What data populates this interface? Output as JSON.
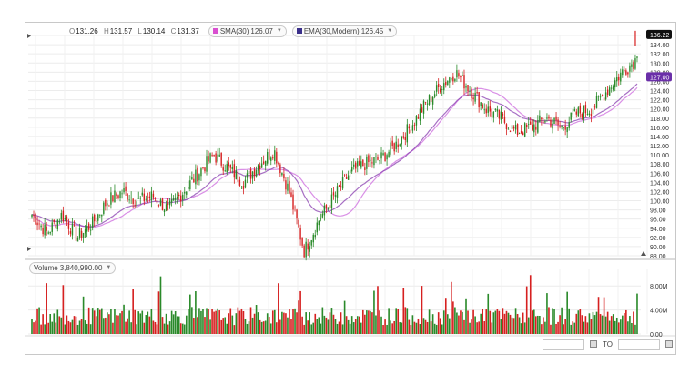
{
  "legend": {
    "open_key": "O",
    "open_val": "131.26",
    "high_key": "H",
    "high_val": "131.57",
    "low_key": "L",
    "low_val": "130.14",
    "close_key": "C",
    "close_val": "131.37",
    "sma_label": "SMA(30)",
    "sma_val": "126.07",
    "sma_color": "#d94fd0",
    "ema_label": "EMA(30,Modern)",
    "ema_val": "126.45",
    "ema_color": "#3a2f8a"
  },
  "volume_legend": {
    "label": "Volume",
    "value": "3,840,990.00"
  },
  "price_axis": {
    "ticks": [
      "136.00",
      "134.00",
      "132.00",
      "130.00",
      "128.00",
      "126.00",
      "124.00",
      "122.00",
      "120.00",
      "118.00",
      "116.00",
      "114.00",
      "112.00",
      "110.00",
      "108.00",
      "106.00",
      "104.00",
      "102.00",
      "100.00",
      "98.00",
      "96.00",
      "94.00",
      "92.00",
      "90.00",
      "88.00"
    ],
    "last_price_label": "136.22",
    "ema_value_label": "127.00"
  },
  "volume_axis": {
    "ticks": [
      "8.00M",
      "4.00M",
      "0.00"
    ]
  },
  "range_selector": {
    "to_label": "TO"
  },
  "colors": {
    "up": "#2a8a2a",
    "down": "#d62020",
    "sma": "#d98fe6",
    "ema": "#8a3fb0",
    "grid": "#ececec"
  },
  "chart_data": [
    {
      "type": "candlestick",
      "title": "",
      "ylim": [
        88,
        136
      ],
      "approx_close_trajectory": [
        97,
        93,
        97,
        92,
        95,
        100,
        102,
        100,
        101,
        98,
        102,
        106,
        110,
        107,
        104,
        108,
        111,
        102,
        89,
        96,
        101,
        106,
        108,
        109,
        112,
        116,
        121,
        125,
        128,
        124,
        120,
        118,
        115,
        116,
        118,
        116,
        119,
        120,
        124,
        128,
        131
      ],
      "last_close": 131.37,
      "last_price": 136.22,
      "series": [
        {
          "name": "SMA(30)",
          "last_value": 126.07
        },
        {
          "name": "EMA(30,Modern)",
          "last_value": 126.45
        }
      ]
    },
    {
      "type": "bar",
      "title": "Volume",
      "ylim": [
        0,
        10
      ],
      "ylabel": "",
      "last_value": 3840990.0,
      "typical_range_millions": [
        1.5,
        4.5
      ]
    }
  ]
}
